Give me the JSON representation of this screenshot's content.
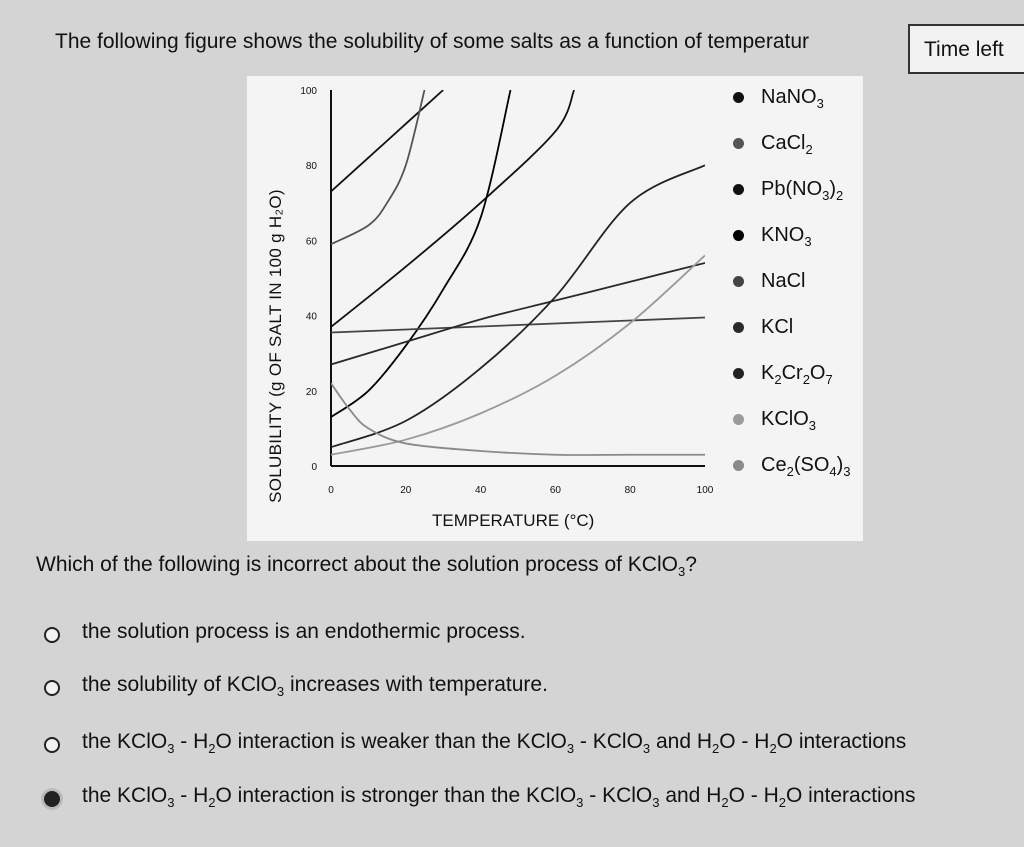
{
  "header": {
    "intro_text": "The following figure shows the solubility of some salts as a function of temperatur",
    "timer_label": "Time left"
  },
  "chart_data": {
    "type": "line",
    "title": "",
    "xlabel": "TEMPERATURE (°C)",
    "ylabel": "SOLUBILITY (g OF SALT IN 100 g H₂O)",
    "xlim": [
      0,
      100
    ],
    "ylim": [
      0,
      100
    ],
    "x_ticks": [
      "0",
      "20",
      "40",
      "60",
      "80",
      "100"
    ],
    "y_ticks": [
      "0",
      "20",
      "40",
      "60",
      "80",
      "100"
    ],
    "grid": false,
    "legend_position": "right",
    "series": [
      {
        "name": "NaNO3",
        "legend_base": "NaNO",
        "legend_sub": "3",
        "legend_rest": "",
        "legend_sub2": "",
        "color": "#111111",
        "x": [
          0,
          10,
          20,
          30
        ],
        "y": [
          73,
          82,
          91,
          100
        ]
      },
      {
        "name": "CaCl2",
        "legend_base": "CaCl",
        "legend_sub": "2",
        "legend_rest": "",
        "legend_sub2": "",
        "color": "#555555",
        "x": [
          0,
          10,
          15,
          20,
          25
        ],
        "y": [
          59,
          64,
          70,
          80,
          100
        ]
      },
      {
        "name": "Pb(NO3)2",
        "legend_base": "Pb(NO",
        "legend_sub": "3",
        "legend_rest": ")",
        "legend_sub2": "2",
        "color": "#111111",
        "x": [
          0,
          20,
          40,
          60,
          65
        ],
        "y": [
          37,
          53,
          70,
          89,
          100
        ]
      },
      {
        "name": "KNO3",
        "legend_base": "KNO",
        "legend_sub": "3",
        "legend_rest": "",
        "legend_sub2": "",
        "color": "#000000",
        "x": [
          0,
          10,
          20,
          30,
          40,
          48
        ],
        "y": [
          13,
          20,
          32,
          47,
          66,
          100
        ]
      },
      {
        "name": "NaCl",
        "legend_base": "NaCl",
        "legend_sub": "",
        "legend_rest": "",
        "legend_sub2": "",
        "color": "#444444",
        "x": [
          0,
          100
        ],
        "y": [
          35.5,
          39.5
        ]
      },
      {
        "name": "KCl",
        "legend_base": "KCl",
        "legend_sub": "",
        "legend_rest": "",
        "legend_sub2": "",
        "color": "#2a2a2a",
        "x": [
          0,
          20,
          40,
          60,
          80,
          100
        ],
        "y": [
          27,
          33,
          39,
          44,
          49,
          54
        ]
      },
      {
        "name": "K2Cr2O7",
        "legend_base": "K",
        "legend_sub": "2",
        "legend_rest": "Cr",
        "legend_sub2": "2",
        "legend_rest2": "O",
        "legend_sub3": "7",
        "color": "#222222",
        "x": [
          0,
          20,
          40,
          60,
          80,
          100
        ],
        "y": [
          5,
          12,
          26,
          45,
          70,
          80
        ]
      },
      {
        "name": "KClO3",
        "legend_base": "KClO",
        "legend_sub": "3",
        "legend_rest": "",
        "legend_sub2": "",
        "color": "#9a9a9a",
        "x": [
          0,
          20,
          40,
          60,
          80,
          100
        ],
        "y": [
          3,
          7,
          14,
          24,
          38,
          56
        ]
      },
      {
        "name": "Ce2(SO4)3",
        "legend_base": "Ce",
        "legend_sub": "2",
        "legend_rest": "(SO",
        "legend_sub2": "4",
        "legend_rest2": ")",
        "legend_sub3": "3",
        "color": "#8a8a8a",
        "x": [
          0,
          5,
          10,
          20,
          40,
          60,
          80,
          100
        ],
        "y": [
          22,
          15,
          10,
          6,
          4,
          3,
          3,
          3
        ]
      }
    ]
  },
  "question": {
    "prefix": "Which of the following is incorrect about the solution process of KClO",
    "sub": "3",
    "suffix": "?"
  },
  "options": [
    {
      "id": "opt1",
      "selected": false,
      "parts": [
        {
          "t": "the solution process is an endothermic process."
        }
      ]
    },
    {
      "id": "opt2",
      "selected": false,
      "parts": [
        {
          "t": "the solubility of KClO"
        },
        {
          "s": "3"
        },
        {
          "t": " increases with temperature."
        }
      ]
    },
    {
      "id": "opt3",
      "selected": false,
      "parts": [
        {
          "t": "the KClO"
        },
        {
          "s": "3"
        },
        {
          "t": " - H"
        },
        {
          "s": "2"
        },
        {
          "t": "O interaction is weaker than the KClO"
        },
        {
          "s": "3"
        },
        {
          "t": " - KClO"
        },
        {
          "s": "3"
        },
        {
          "t": " and H"
        },
        {
          "s": "2"
        },
        {
          "t": "O - H"
        },
        {
          "s": "2"
        },
        {
          "t": "O interactions"
        }
      ]
    },
    {
      "id": "opt4",
      "selected": true,
      "parts": [
        {
          "t": "the KClO"
        },
        {
          "s": "3"
        },
        {
          "t": " - H"
        },
        {
          "s": "2"
        },
        {
          "t": "O interaction is stronger than the KClO"
        },
        {
          "s": "3"
        },
        {
          "t": " - KClO"
        },
        {
          "s": "3"
        },
        {
          "t": " and H"
        },
        {
          "s": "2"
        },
        {
          "t": "O - H"
        },
        {
          "s": "2"
        },
        {
          "t": "O interactions"
        }
      ]
    }
  ]
}
